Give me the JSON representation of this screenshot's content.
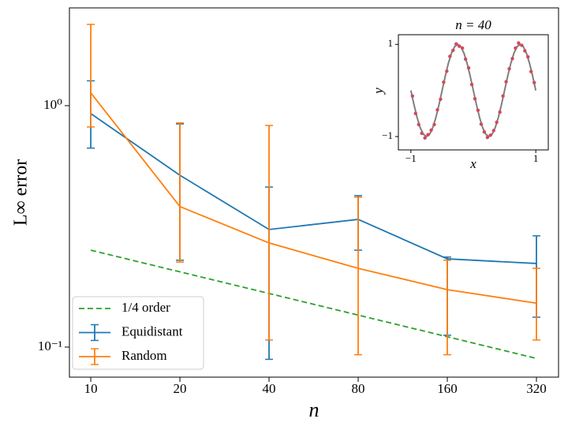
{
  "chart_data": [
    {
      "type": "line",
      "log_x": true,
      "log_y": true,
      "grid": false,
      "legend": "lower left",
      "xlabel": "n",
      "ylabel": "L∞ error",
      "x": [
        10,
        20,
        40,
        80,
        160,
        320
      ],
      "xlim": [
        8.47,
        380
      ],
      "xticks": [
        10,
        20,
        40,
        80,
        160,
        320
      ],
      "ylim": [
        0.0751,
        2.54
      ],
      "yticks": [
        {
          "value": 1,
          "label": "10⁰"
        },
        {
          "value": 0.1,
          "label": "10⁻¹"
        }
      ],
      "series": [
        {
          "name": "1/4 order",
          "color": "#2ca02c",
          "style": "dashed",
          "values": [
            0.252,
            0.205,
            0.1668,
            0.1357,
            0.1104,
            0.0898
          ]
        },
        {
          "name": "Equidistant",
          "color": "#1f77b4",
          "values": [
            0.927,
            0.515,
            0.307,
            0.338,
            0.232,
            0.222
          ],
          "errors": [
            [
              0.26,
              0.34
            ],
            [
              0.286,
              0.325
            ],
            [
              0.218,
              0.153
            ],
            [
              0.086,
              0.086
            ],
            [
              0.12,
              0.004
            ],
            [
              0.089,
              0.067
            ]
          ]
        },
        {
          "name": "Random",
          "color": "#ff7f0e",
          "values": [
            1.13,
            0.382,
            0.27,
            0.212,
            0.173,
            0.152
          ],
          "errors": [
            [
              0.314,
              1.04
            ],
            [
              0.157,
              0.466
            ],
            [
              0.163,
              0.558
            ],
            [
              0.119,
              0.206
            ],
            [
              0.08,
              0.056
            ],
            [
              0.045,
              0.06
            ]
          ]
        }
      ]
    },
    {
      "type": "line",
      "title": "n = 40",
      "xlabel": "x",
      "ylabel": "y",
      "xlim": [
        -1.2,
        1.2
      ],
      "xticks": [
        {
          "value": -1,
          "label": "−1"
        },
        1
      ],
      "ylim": [
        -1.29,
        1.21
      ],
      "yticks": [
        {
          "value": -1,
          "label": "−1"
        },
        1
      ],
      "series": [
        {
          "type": "line",
          "color": "#7f7f7f",
          "x": [
            -1,
            -0.95,
            -0.9,
            -0.85,
            -0.8,
            -0.75,
            -0.7,
            -0.65,
            -0.6,
            -0.55,
            -0.5,
            -0.45,
            -0.4,
            -0.35,
            -0.3,
            -0.25,
            -0.2,
            -0.15,
            -0.1,
            -0.05,
            0,
            0.05,
            0.1,
            0.15,
            0.2,
            0.25,
            0.3,
            0.35,
            0.4,
            0.45,
            0.5,
            0.55,
            0.6,
            0.65,
            0.7,
            0.75,
            0.8,
            0.85,
            0.9,
            0.95,
            1
          ],
          "values": [
            0,
            -0.309,
            -0.588,
            -0.809,
            -0.951,
            -1,
            -0.951,
            -0.809,
            -0.588,
            -0.309,
            0,
            0.309,
            0.588,
            0.809,
            0.951,
            1,
            0.951,
            0.809,
            0.588,
            0.309,
            0,
            -0.309,
            -0.588,
            -0.809,
            -0.951,
            -1,
            -0.951,
            -0.809,
            -0.588,
            -0.309,
            0,
            0.309,
            0.588,
            0.809,
            0.951,
            1,
            0.951,
            0.809,
            0.588,
            0.309,
            0
          ]
        },
        {
          "type": "scatter",
          "color": "#d1495b",
          "x": [
            -0.975,
            -0.925,
            -0.875,
            -0.825,
            -0.775,
            -0.725,
            -0.675,
            -0.625,
            -0.575,
            -0.525,
            -0.475,
            -0.425,
            -0.375,
            -0.325,
            -0.275,
            -0.225,
            -0.175,
            -0.125,
            -0.075,
            -0.025,
            0.025,
            0.075,
            0.125,
            0.175,
            0.225,
            0.275,
            0.325,
            0.375,
            0.425,
            0.475,
            0.525,
            0.575,
            0.625,
            0.675,
            0.725,
            0.775,
            0.825,
            0.875,
            0.925,
            0.975
          ],
          "values": [
            -0.12,
            -0.5,
            -0.74,
            -0.93,
            -1.03,
            -0.96,
            -0.86,
            -0.74,
            -0.42,
            -0.19,
            0.18,
            0.42,
            0.74,
            0.87,
            1.01,
            0.96,
            0.92,
            0.68,
            0.49,
            0.13,
            -0.18,
            -0.43,
            -0.73,
            -0.9,
            -1.02,
            -0.97,
            -0.87,
            -0.69,
            -0.47,
            -0.12,
            0.19,
            0.47,
            0.69,
            0.92,
            1.03,
            0.98,
            0.86,
            0.73,
            0.41,
            0.17
          ]
        }
      ]
    }
  ]
}
